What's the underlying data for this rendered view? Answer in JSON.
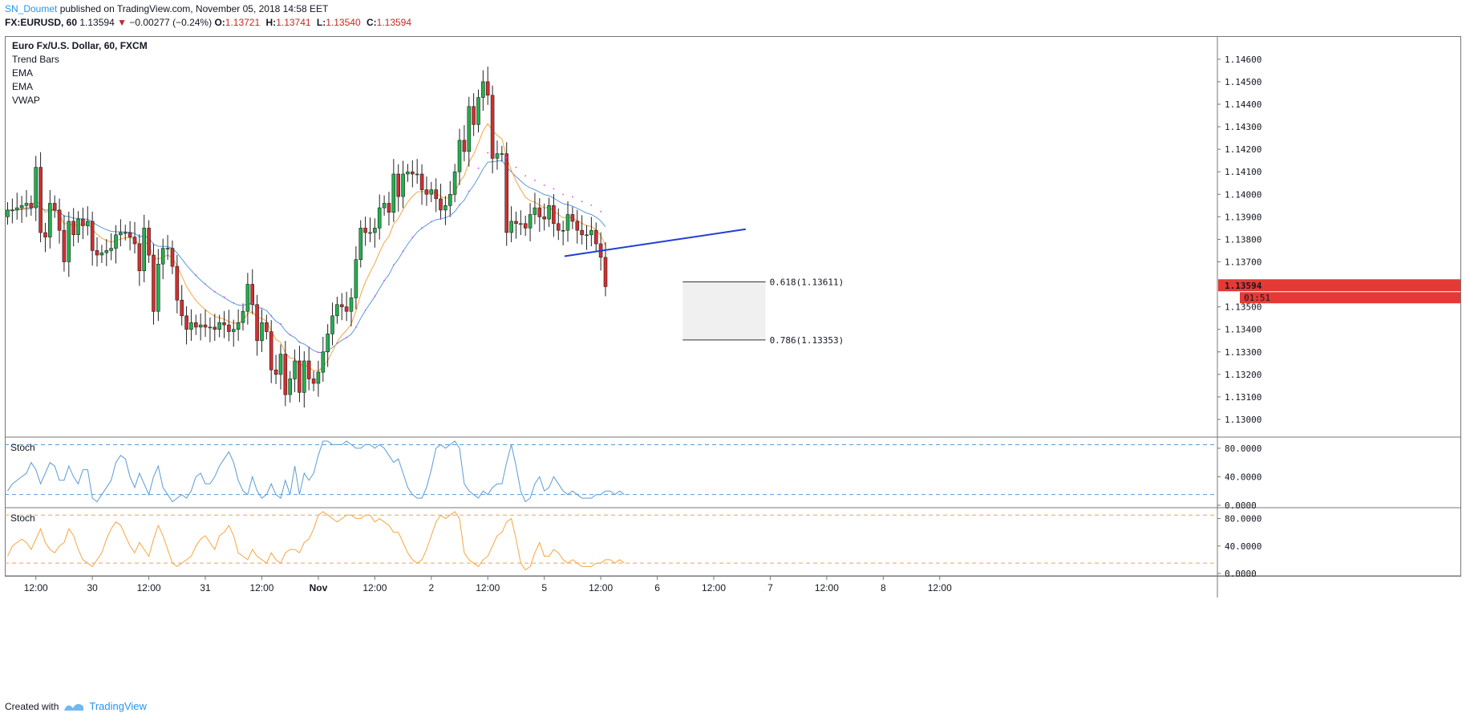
{
  "header": {
    "author": "SN_Doumet",
    "published_text": " published on TradingView.com, November 05, 2018 14:58 EET",
    "symbol_line": "FX:EURUSD, 60",
    "last_price": "1.13594",
    "change_arrow": "▼",
    "change": "−0.00277 (−0.24%)",
    "ohlc": [
      {
        "k": "O:",
        "v": "1.13721"
      },
      {
        "k": "H:",
        "v": "1.13741"
      },
      {
        "k": "L:",
        "v": "1.13540"
      },
      {
        "k": "C:",
        "v": "1.13594"
      }
    ]
  },
  "legend": [
    "Euro Fx/U.S. Dollar, 60, FXCM",
    "Trend Bars",
    "EMA",
    "EMA",
    "VWAP"
  ],
  "footer": {
    "created_with": "Created with",
    "brand": "TradingView"
  },
  "colors": {
    "up": "#22b14c",
    "down": "#d32f2f",
    "ema_fast": "#f7a440",
    "ema_slow": "#5b9bd5",
    "vwap": "#e040fb",
    "trendline": "#1f3fd6",
    "stoch1": "#5b9bd5",
    "stoch2": "#f7a440"
  },
  "chart_data": [
    {
      "type": "candlestick",
      "title": "Euro Fx/U.S. Dollar, 60, FXCM",
      "ylim": [
        1.1295,
        1.1466
      ],
      "y_ticks": [
        "1.14600",
        "1.14500",
        "1.14400",
        "1.14300",
        "1.14200",
        "1.14100",
        "1.14000",
        "1.13900",
        "1.13800",
        "1.13700",
        "1.13500",
        "1.13400",
        "1.13300",
        "1.13200",
        "1.13100",
        "1.13000"
      ],
      "x_ticks": [
        {
          "label": "12:00",
          "bar": 6
        },
        {
          "label": "30",
          "bar": 18
        },
        {
          "label": "12:00",
          "bar": 30
        },
        {
          "label": "31",
          "bar": 42
        },
        {
          "label": "12:00",
          "bar": 54
        },
        {
          "label": "Nov",
          "bar": 66
        },
        {
          "label": "12:00",
          "bar": 78
        },
        {
          "label": "2",
          "bar": 90
        },
        {
          "label": "12:00",
          "bar": 102
        },
        {
          "label": "5",
          "bar": 114
        },
        {
          "label": "12:00",
          "bar": 126
        },
        {
          "label": "6",
          "bar": 138
        },
        {
          "label": "12:00",
          "bar": 150
        },
        {
          "label": "7",
          "bar": 162
        },
        {
          "label": "12:00",
          "bar": 174
        },
        {
          "label": "8",
          "bar": 186
        },
        {
          "label": "12:00",
          "bar": 198
        }
      ],
      "close": [
        1.1393,
        1.1393,
        1.1394,
        1.1395,
        1.1396,
        1.1394,
        1.1412,
        1.1383,
        1.1381,
        1.1396,
        1.1393,
        1.1384,
        1.137,
        1.1388,
        1.1382,
        1.1389,
        1.1386,
        1.1388,
        1.1375,
        1.1373,
        1.1374,
        1.1375,
        1.1376,
        1.1382,
        1.1383,
        1.1383,
        1.1381,
        1.1378,
        1.1366,
        1.1385,
        1.1373,
        1.1348,
        1.1369,
        1.1376,
        1.1376,
        1.1368,
        1.1353,
        1.1346,
        1.134,
        1.1343,
        1.1341,
        1.1342,
        1.1341,
        1.1341,
        1.134,
        1.1343,
        1.1342,
        1.1339,
        1.134,
        1.1343,
        1.1348,
        1.136,
        1.1351,
        1.1335,
        1.1343,
        1.1339,
        1.1322,
        1.132,
        1.1329,
        1.1311,
        1.1318,
        1.1326,
        1.1312,
        1.1326,
        1.1318,
        1.1316,
        1.1321,
        1.133,
        1.1338,
        1.1346,
        1.1351,
        1.135,
        1.1348,
        1.1354,
        1.1371,
        1.1385,
        1.1383,
        1.1383,
        1.1385,
        1.1394,
        1.1396,
        1.1392,
        1.1409,
        1.1399,
        1.1409,
        1.141,
        1.1409,
        1.1409,
        1.1402,
        1.14,
        1.1402,
        1.1398,
        1.1393,
        1.1395,
        1.14,
        1.141,
        1.1424,
        1.1419,
        1.1439,
        1.1431,
        1.1443,
        1.145,
        1.1444,
        1.1416,
        1.1418,
        1.1418,
        1.1383,
        1.1388,
        1.1387,
        1.1387,
        1.1385,
        1.1391,
        1.1394,
        1.139,
        1.1389,
        1.1395,
        1.1387,
        1.1384,
        1.1384,
        1.1391,
        1.1388,
        1.1384,
        1.1382,
        1.1382,
        1.1384,
        1.1378,
        1.1372,
        1.1359
      ],
      "overlays": {
        "trendline": [
          {
            "bar": 118.3,
            "price": 1.13725
          },
          {
            "bar": 156.8,
            "price": 1.13845
          }
        ],
        "fib_618": {
          "label": "0.618(1.13611)",
          "price": 1.13611,
          "from_bar": 143.4,
          "to_bar": 161.0
        },
        "fib_786": {
          "label": "0.786(1.13353)",
          "price": 1.13353,
          "from_bar": 143.4,
          "to_bar": 161.0
        },
        "price_badge": "1.13594",
        "countdown": "01:51"
      }
    },
    {
      "type": "line",
      "name": "Stoch",
      "ylim": [
        0,
        90
      ],
      "y_ticks": [
        "80.0000",
        "40.0000",
        "0.0000"
      ],
      "bands": [
        85,
        15
      ],
      "values": [
        20,
        30,
        35,
        40,
        45,
        60,
        50,
        30,
        45,
        60,
        55,
        35,
        35,
        55,
        40,
        30,
        50,
        50,
        10,
        5,
        15,
        25,
        35,
        60,
        70,
        65,
        40,
        25,
        45,
        30,
        15,
        40,
        55,
        25,
        15,
        5,
        10,
        15,
        10,
        20,
        40,
        45,
        30,
        30,
        40,
        55,
        65,
        75,
        60,
        35,
        20,
        15,
        40,
        20,
        10,
        15,
        30,
        15,
        10,
        35,
        15,
        55,
        15,
        45,
        35,
        45,
        70,
        90,
        90,
        85,
        85,
        85,
        90,
        85,
        80,
        80,
        85,
        85,
        80,
        85,
        80,
        70,
        60,
        65,
        45,
        25,
        15,
        10,
        10,
        25,
        50,
        80,
        85,
        80,
        85,
        90,
        80,
        30,
        20,
        15,
        10,
        20,
        15,
        25,
        30,
        30,
        60,
        85,
        55,
        20,
        5,
        10,
        30,
        40,
        20,
        25,
        40,
        30,
        20,
        15,
        20,
        15,
        10,
        10,
        10,
        15,
        15,
        20,
        20,
        15,
        20,
        15
      ],
      "color": "#5b9bd5"
    },
    {
      "type": "line",
      "name": "Stoch",
      "ylim": [
        0,
        90
      ],
      "y_ticks": [
        "80.0000",
        "40.0000",
        "0.0000"
      ],
      "bands": [
        85,
        15
      ],
      "values": [
        25,
        40,
        45,
        50,
        45,
        35,
        50,
        65,
        45,
        35,
        30,
        40,
        45,
        65,
        55,
        35,
        20,
        15,
        10,
        20,
        30,
        50,
        65,
        75,
        70,
        55,
        40,
        30,
        45,
        35,
        25,
        50,
        70,
        55,
        35,
        15,
        10,
        15,
        20,
        25,
        40,
        50,
        55,
        45,
        35,
        55,
        60,
        70,
        55,
        30,
        25,
        20,
        35,
        25,
        20,
        15,
        30,
        20,
        15,
        30,
        35,
        35,
        30,
        45,
        50,
        65,
        85,
        90,
        85,
        80,
        75,
        80,
        85,
        85,
        80,
        80,
        85,
        85,
        75,
        80,
        75,
        70,
        60,
        60,
        45,
        30,
        20,
        15,
        20,
        35,
        55,
        75,
        85,
        80,
        85,
        90,
        80,
        30,
        20,
        15,
        10,
        20,
        25,
        40,
        55,
        60,
        75,
        80,
        50,
        15,
        5,
        10,
        30,
        45,
        25,
        25,
        35,
        30,
        20,
        15,
        20,
        15,
        10,
        10,
        10,
        15,
        15,
        20,
        20,
        15,
        20,
        15
      ],
      "color": "#f7a440"
    }
  ]
}
